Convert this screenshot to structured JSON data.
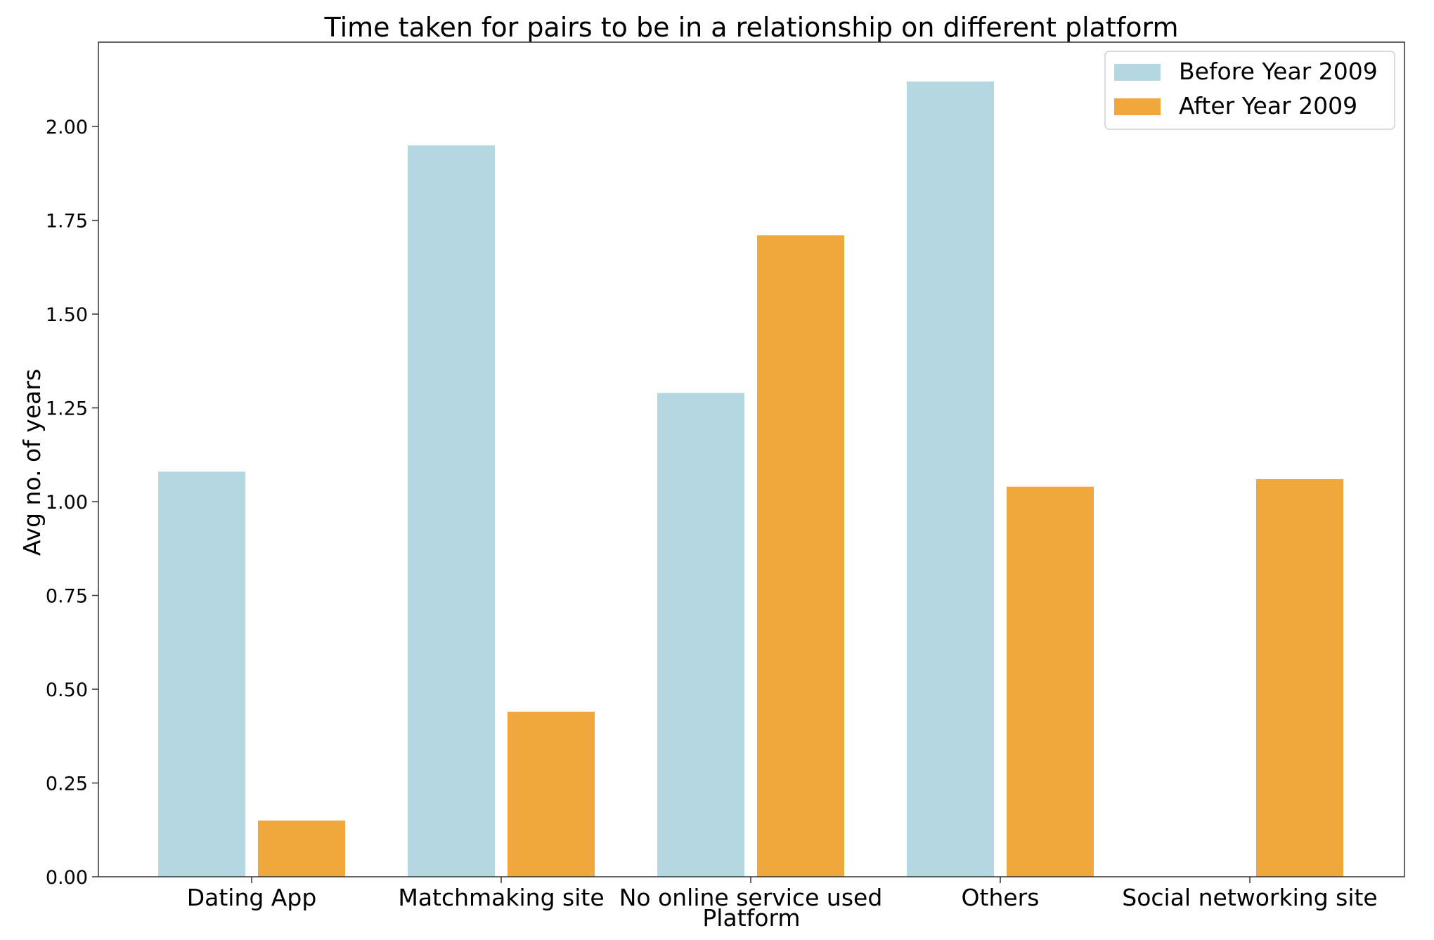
{
  "chart_data": {
    "type": "bar",
    "title": "Time taken for pairs to be in a relationship on different platform",
    "xlabel": "Platform",
    "ylabel": "Avg no. of years",
    "categories": [
      "Dating App",
      "Matchmaking site",
      "No online service used",
      "Others",
      "Social networking site"
    ],
    "series": [
      {
        "name": "Before Year 2009",
        "color": "#b5d7e2",
        "values": [
          1.08,
          1.95,
          1.29,
          2.12,
          null
        ]
      },
      {
        "name": "After Year 2009",
        "color": "#f0a73c",
        "values": [
          0.15,
          0.44,
          1.71,
          1.04,
          1.06
        ]
      }
    ],
    "yticks": [
      "0.00",
      "0.25",
      "0.50",
      "0.75",
      "1.00",
      "1.25",
      "1.50",
      "1.75",
      "2.00"
    ],
    "ylim": [
      0,
      2.225
    ],
    "legend_position": "top-right",
    "grid": false
  }
}
